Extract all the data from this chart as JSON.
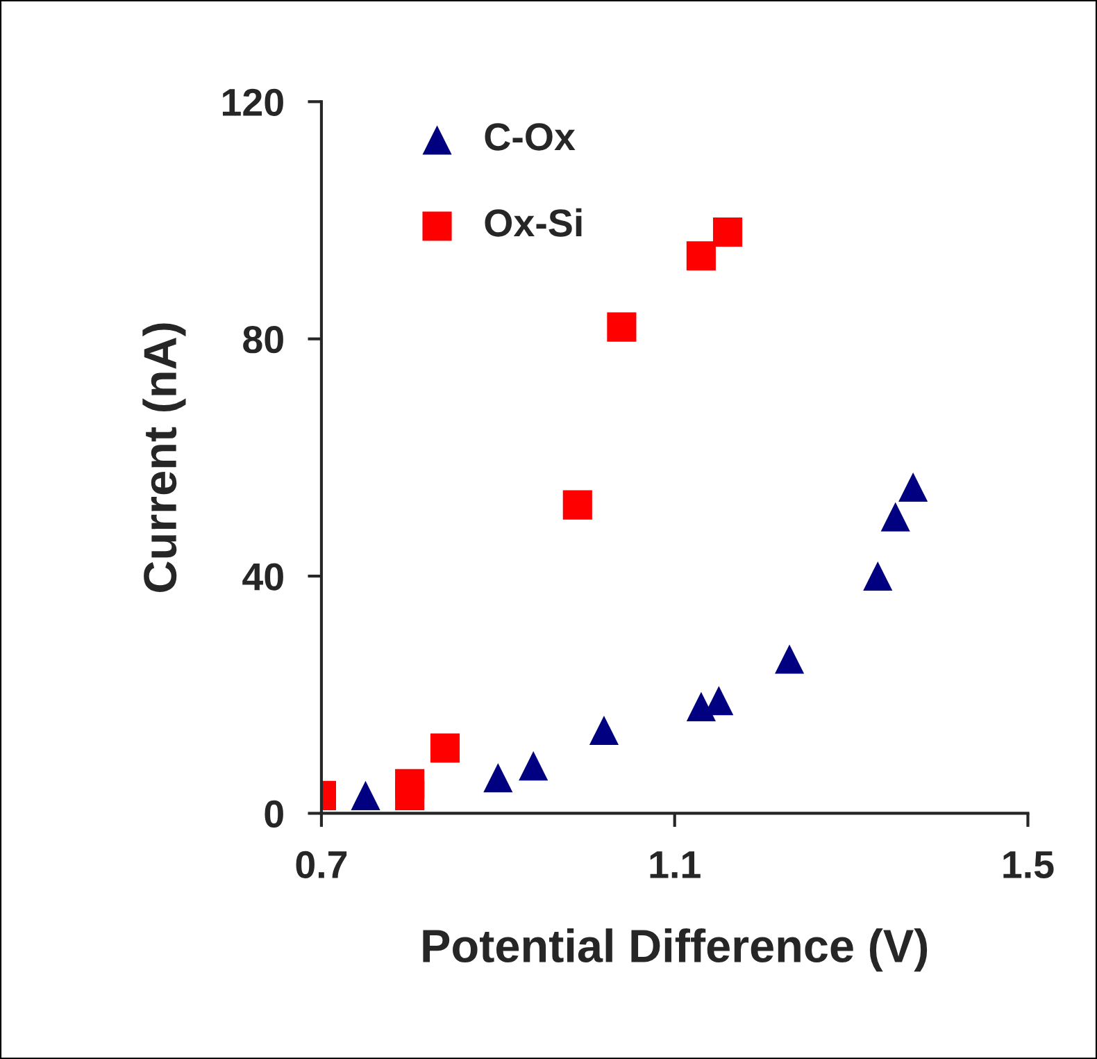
{
  "chart_data": {
    "type": "scatter",
    "xlabel": "Potential Difference (V)",
    "ylabel": "Current (nA)",
    "xlim": [
      0.7,
      1.5
    ],
    "xticks": [
      0.7,
      1.1,
      1.5
    ],
    "ylim": [
      0,
      120
    ],
    "yticks": [
      0,
      40,
      80,
      120
    ],
    "grid": false,
    "legend": "top left",
    "series": [
      {
        "name": "C-Ox",
        "color": "#000080",
        "marker": "triangle",
        "x": [
          0.75,
          0.9,
          0.94,
          1.02,
          1.13,
          1.15,
          1.23,
          1.33,
          1.35,
          1.37
        ],
        "values": [
          3,
          6,
          8,
          14,
          18,
          19,
          26,
          40,
          50,
          55
        ]
      },
      {
        "name": "Ox-Si",
        "color": "#ff0000",
        "marker": "square",
        "x": [
          0.7,
          0.8,
          0.8,
          0.84,
          0.99,
          1.04,
          1.13,
          1.16
        ],
        "values": [
          3,
          5,
          3,
          11,
          52,
          82,
          94,
          98
        ]
      }
    ]
  }
}
